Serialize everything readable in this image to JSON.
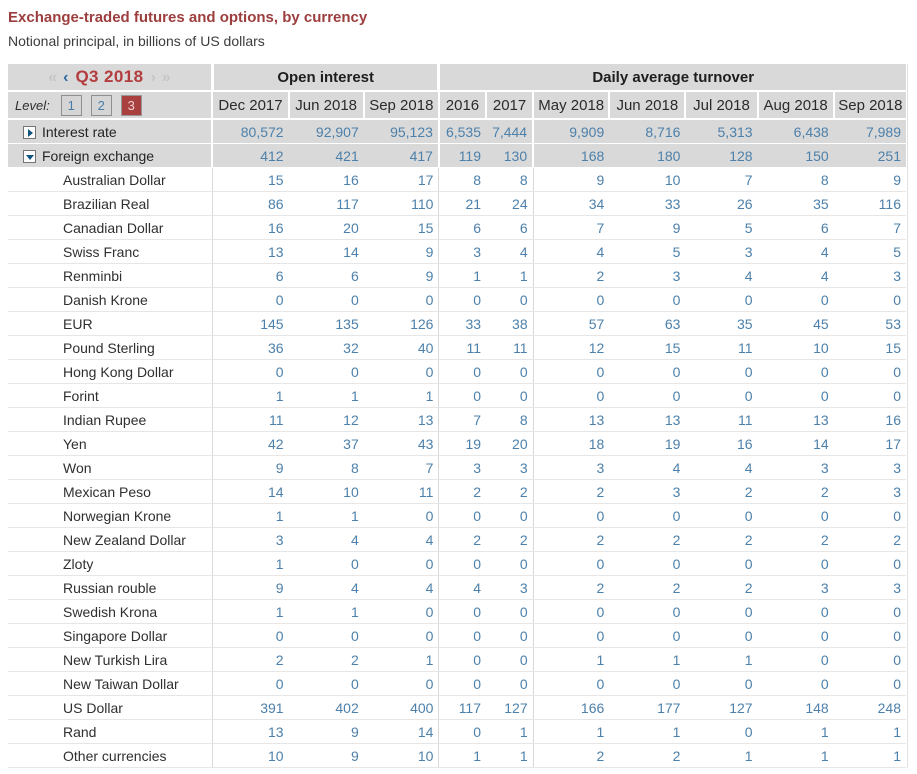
{
  "page": {
    "title": "Exchange-traded futures and options, by currency",
    "subtitle": "Notional principal, in billions of US dollars"
  },
  "navigator": {
    "period": "Q3 2018",
    "first_icon": "«",
    "prev_icon": "‹",
    "next_icon": "›",
    "last_icon": "»"
  },
  "level_selector": {
    "label": "Level:",
    "options": [
      "1",
      "2",
      "3"
    ],
    "selected": "3"
  },
  "colors": {
    "accent_red": "#9d3e3e",
    "period_red": "#b23c3e",
    "value_blue": "#4d80aa",
    "header_bg": "#d9d9d9",
    "active_arrow_blue": "#2d6a9f",
    "inactive_arrow_gray": "#c6c6c6",
    "active_level_bg": "#a84040"
  },
  "table": {
    "column_groups": [
      {
        "label": "Open interest",
        "span": 3
      },
      {
        "label": "Daily average turnover",
        "span": 7
      }
    ],
    "columns": [
      "Dec 2017",
      "Jun 2018",
      "Sep 2018",
      "2016",
      "2017",
      "May 2018",
      "Jun 2018",
      "Jul 2018",
      "Aug 2018",
      "Sep 2018"
    ],
    "summary_rows": [
      {
        "label": "Interest rate",
        "state": "collapsed",
        "values": [
          "80,572",
          "92,907",
          "95,123",
          "6,535",
          "7,444",
          "9,909",
          "8,716",
          "5,313",
          "6,438",
          "7,989"
        ]
      },
      {
        "label": "Foreign exchange",
        "state": "expanded",
        "values": [
          "412",
          "421",
          "417",
          "119",
          "130",
          "168",
          "180",
          "128",
          "150",
          "251"
        ]
      }
    ],
    "currency_rows": [
      {
        "label": "Australian Dollar",
        "values": [
          15,
          16,
          17,
          8,
          8,
          9,
          10,
          7,
          8,
          9
        ]
      },
      {
        "label": "Brazilian Real",
        "values": [
          86,
          117,
          110,
          21,
          24,
          34,
          33,
          26,
          35,
          116
        ]
      },
      {
        "label": "Canadian Dollar",
        "values": [
          16,
          20,
          15,
          6,
          6,
          7,
          9,
          5,
          6,
          7
        ]
      },
      {
        "label": "Swiss Franc",
        "values": [
          13,
          14,
          9,
          3,
          4,
          4,
          5,
          3,
          4,
          5
        ]
      },
      {
        "label": "Renminbi",
        "values": [
          6,
          6,
          9,
          1,
          1,
          2,
          3,
          4,
          4,
          3
        ]
      },
      {
        "label": "Danish Krone",
        "values": [
          0,
          0,
          0,
          0,
          0,
          0,
          0,
          0,
          0,
          0
        ]
      },
      {
        "label": "EUR",
        "values": [
          145,
          135,
          126,
          33,
          38,
          57,
          63,
          35,
          45,
          53
        ]
      },
      {
        "label": "Pound Sterling",
        "values": [
          36,
          32,
          40,
          11,
          11,
          12,
          15,
          11,
          10,
          15
        ]
      },
      {
        "label": "Hong Kong Dollar",
        "values": [
          0,
          0,
          0,
          0,
          0,
          0,
          0,
          0,
          0,
          0
        ]
      },
      {
        "label": "Forint",
        "values": [
          1,
          1,
          1,
          0,
          0,
          0,
          0,
          0,
          0,
          0
        ]
      },
      {
        "label": "Indian Rupee",
        "values": [
          11,
          12,
          13,
          7,
          8,
          13,
          13,
          11,
          13,
          16
        ]
      },
      {
        "label": "Yen",
        "values": [
          42,
          37,
          43,
          19,
          20,
          18,
          19,
          16,
          14,
          17
        ]
      },
      {
        "label": "Won",
        "values": [
          9,
          8,
          7,
          3,
          3,
          3,
          4,
          4,
          3,
          3
        ]
      },
      {
        "label": "Mexican Peso",
        "values": [
          14,
          10,
          11,
          2,
          2,
          2,
          3,
          2,
          2,
          3
        ]
      },
      {
        "label": "Norwegian Krone",
        "values": [
          1,
          1,
          0,
          0,
          0,
          0,
          0,
          0,
          0,
          0
        ]
      },
      {
        "label": "New Zealand Dollar",
        "values": [
          3,
          4,
          4,
          2,
          2,
          2,
          2,
          2,
          2,
          2
        ]
      },
      {
        "label": "Zloty",
        "values": [
          1,
          0,
          0,
          0,
          0,
          0,
          0,
          0,
          0,
          0
        ]
      },
      {
        "label": "Russian rouble",
        "values": [
          9,
          4,
          4,
          4,
          3,
          2,
          2,
          2,
          3,
          3
        ]
      },
      {
        "label": "Swedish Krona",
        "values": [
          1,
          1,
          0,
          0,
          0,
          0,
          0,
          0,
          0,
          0
        ]
      },
      {
        "label": "Singapore Dollar",
        "values": [
          0,
          0,
          0,
          0,
          0,
          0,
          0,
          0,
          0,
          0
        ]
      },
      {
        "label": "New Turkish Lira",
        "values": [
          2,
          2,
          1,
          0,
          0,
          1,
          1,
          1,
          0,
          0
        ]
      },
      {
        "label": "New Taiwan Dollar",
        "values": [
          0,
          0,
          0,
          0,
          0,
          0,
          0,
          0,
          0,
          0
        ]
      },
      {
        "label": "US Dollar",
        "values": [
          391,
          402,
          400,
          117,
          127,
          166,
          177,
          127,
          148,
          248
        ]
      },
      {
        "label": "Rand",
        "values": [
          13,
          9,
          14,
          0,
          1,
          1,
          1,
          0,
          1,
          1
        ]
      },
      {
        "label": "Other currencies",
        "values": [
          10,
          9,
          10,
          1,
          1,
          2,
          2,
          1,
          1,
          1
        ]
      }
    ]
  }
}
